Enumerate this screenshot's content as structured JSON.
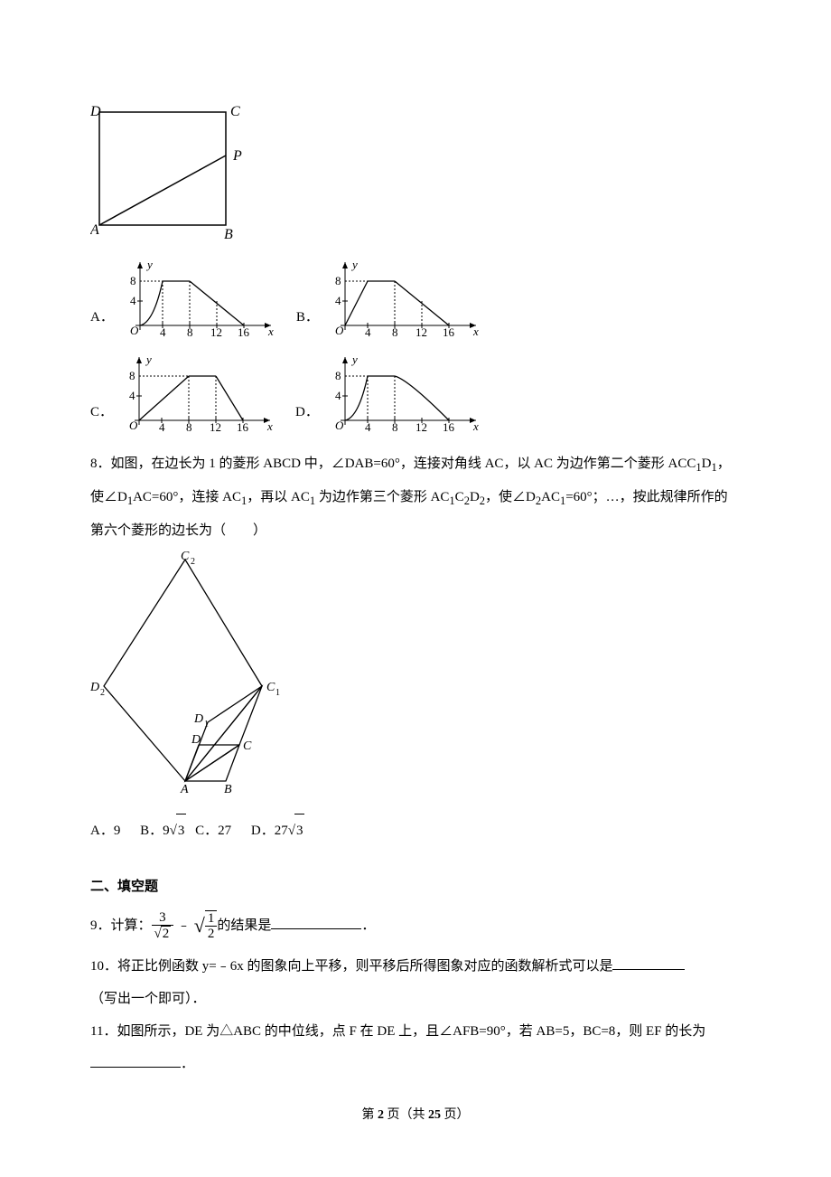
{
  "q7": {
    "square": {
      "labels": {
        "A": "A",
        "B": "B",
        "C": "C",
        "D": "D",
        "P": "P"
      }
    },
    "options": {
      "A": "A．",
      "B": "B．",
      "C": "C．",
      "D": "D．"
    },
    "chart": {
      "x_ticks": [
        4,
        8,
        12,
        16
      ],
      "y_ticks": [
        4,
        8
      ],
      "x_label": "x",
      "y_label": "y",
      "origin": "O",
      "colors": {
        "axis": "#000000",
        "dash": "#000000",
        "curve": "#000000"
      }
    }
  },
  "q8": {
    "num": "8．",
    "text_pre": "如图，在边长为 1 的菱形 ABCD 中，∠DAB=60°，连接对角线 AC，以 AC 为边作第二个菱形 ACC",
    "text_mid1": "D",
    "text_mid2": "，使∠D",
    "text_mid3": "AC=60°，连接 AC",
    "text_mid4": "，再以 AC",
    "text_mid5": " 为边作第三个菱形 AC",
    "text_mid6": "C",
    "text_mid7": "D",
    "text_mid8": "，使∠D",
    "text_mid9": "AC",
    "text_mid10": "=60°；…，按此规律所作的第六个菱形的边长为（　　）",
    "rhombus_labels": {
      "A": "A",
      "B": "B",
      "C": "C",
      "D": "D",
      "C1": "C₁",
      "D1": "D₁",
      "C2": "C₂",
      "D2": "D₂"
    },
    "opts": {
      "A": "A．9",
      "B_pre": "B．9",
      "B_rad": "3",
      "C": "C．27",
      "D_pre": "D．27",
      "D_rad": "3"
    }
  },
  "section2": "二、填空题",
  "q9": {
    "num": "9．",
    "pre": "计算：",
    "frac1_num": "3",
    "frac1_den_rad": "2",
    "minus": "﹣",
    "sqrt_frac_num": "1",
    "sqrt_frac_den": "2",
    "post": "的结果是",
    "period": "．",
    "blank_width": 100
  },
  "q10": {
    "num": "10．",
    "text": "将正比例函数 y=﹣6x 的图象向上平移，则平移后所得图象对应的函数解析式可以是",
    "note": "（写出一个即可）．",
    "blank_width": 80
  },
  "q11": {
    "num": "11．",
    "text": "如图所示，DE 为△ABC 的中位线，点 F 在 DE 上，且∠AFB=90°，若 AB=5，BC=8，则 EF 的长为",
    "period": "．",
    "blank_width": 100
  },
  "footer": {
    "pre": "第 ",
    "page": "2",
    "mid": " 页（共 ",
    "total": "25",
    "post": " 页）"
  }
}
